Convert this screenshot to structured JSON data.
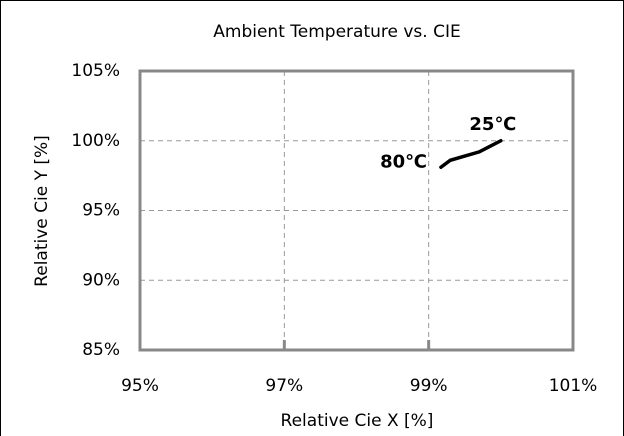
{
  "chart_data": {
    "type": "line",
    "title": "Ambient Temperature vs. CIE",
    "xlabel": "Relative Cie X [%]",
    "ylabel": "Relative Cie Y [%]",
    "x": [
      99.17,
      99.3,
      99.5,
      99.7,
      99.85,
      100.0
    ],
    "series": [
      {
        "color": "#000000",
        "values": [
          98.1,
          98.6,
          98.9,
          99.2,
          99.6,
          100.0
        ]
      }
    ],
    "annotations": [
      "25℃",
      "80℃"
    ],
    "xlim": [
      95,
      101
    ],
    "xticks": [
      {
        "value": 95,
        "label": "95%"
      },
      {
        "value": 97,
        "label": "97%"
      },
      {
        "value": 99,
        "label": "99%"
      },
      {
        "value": 101,
        "label": "101%"
      }
    ],
    "ylim": [
      85,
      105
    ],
    "yticks": [
      {
        "value": 85,
        "label": "85%"
      },
      {
        "value": 90,
        "label": "90%"
      },
      {
        "value": 95,
        "label": "95%"
      },
      {
        "value": 100,
        "label": "100%"
      },
      {
        "value": 105,
        "label": "105%"
      }
    ],
    "grid": true
  }
}
